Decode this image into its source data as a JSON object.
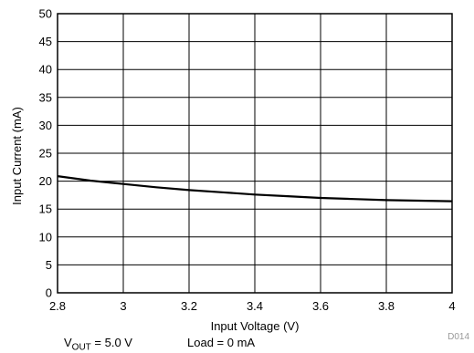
{
  "chart_data": {
    "type": "line",
    "xlabel": "Input Voltage (V)",
    "ylabel": "Input Current (mA)",
    "xlim": [
      2.8,
      4
    ],
    "ylim": [
      0,
      50
    ],
    "xticks": [
      2.8,
      3,
      3.2,
      3.4,
      3.6,
      3.8,
      4
    ],
    "xtick_labels": [
      "2.8",
      "3",
      "3.2",
      "3.4",
      "3.6",
      "3.8",
      "4"
    ],
    "yticks": [
      0,
      5,
      10,
      15,
      20,
      25,
      30,
      35,
      40,
      45,
      50
    ],
    "ytick_labels": [
      "0",
      "5",
      "10",
      "15",
      "20",
      "25",
      "30",
      "35",
      "40",
      "45",
      "50"
    ],
    "grid": true,
    "series": [
      {
        "color": "#000000",
        "x": [
          2.8,
          2.9,
          3.0,
          3.1,
          3.2,
          3.3,
          3.4,
          3.5,
          3.6,
          3.7,
          3.8,
          3.9,
          4.0
        ],
        "y": [
          20.9,
          20.1,
          19.5,
          18.9,
          18.4,
          18.0,
          17.6,
          17.3,
          17.0,
          16.8,
          16.6,
          16.5,
          16.4
        ]
      }
    ]
  },
  "figure_code": "D014",
  "conditions": {
    "vout_prefix": "V",
    "vout_subscript": "OUT",
    "vout_value": " = 5.0 V",
    "load": "Load = 0 mA"
  }
}
